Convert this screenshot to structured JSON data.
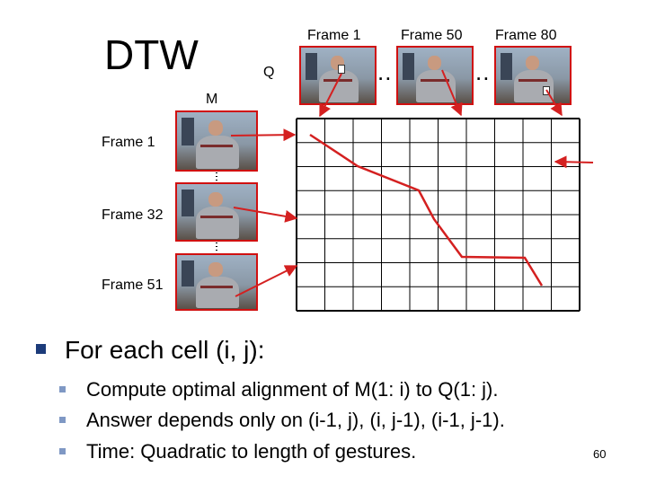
{
  "title": "DTW",
  "query_label": "Q",
  "model_label": "M",
  "q_frames": [
    "Frame 1",
    "Frame 50",
    "Frame 80"
  ],
  "m_frames": [
    "Frame 1",
    "Frame 32",
    "Frame 51"
  ],
  "ellipsis": "..",
  "bullet_main": "For each cell (i, j):",
  "sub_bullets": [
    "Compute optimal alignment of M(1: i) to Q(1: j).",
    "Answer depends only on (i-1, j), (i, j-1), (i-1, j-1).",
    "Time: Quadratic to length of gestures."
  ],
  "page_number": "60",
  "colors": {
    "frame_border": "#d01010",
    "path": "#d42020",
    "bullet_main": "#1c3b7a",
    "bullet_sub": "#7f98c4"
  },
  "grid": {
    "rows": 8,
    "cols": 10
  }
}
